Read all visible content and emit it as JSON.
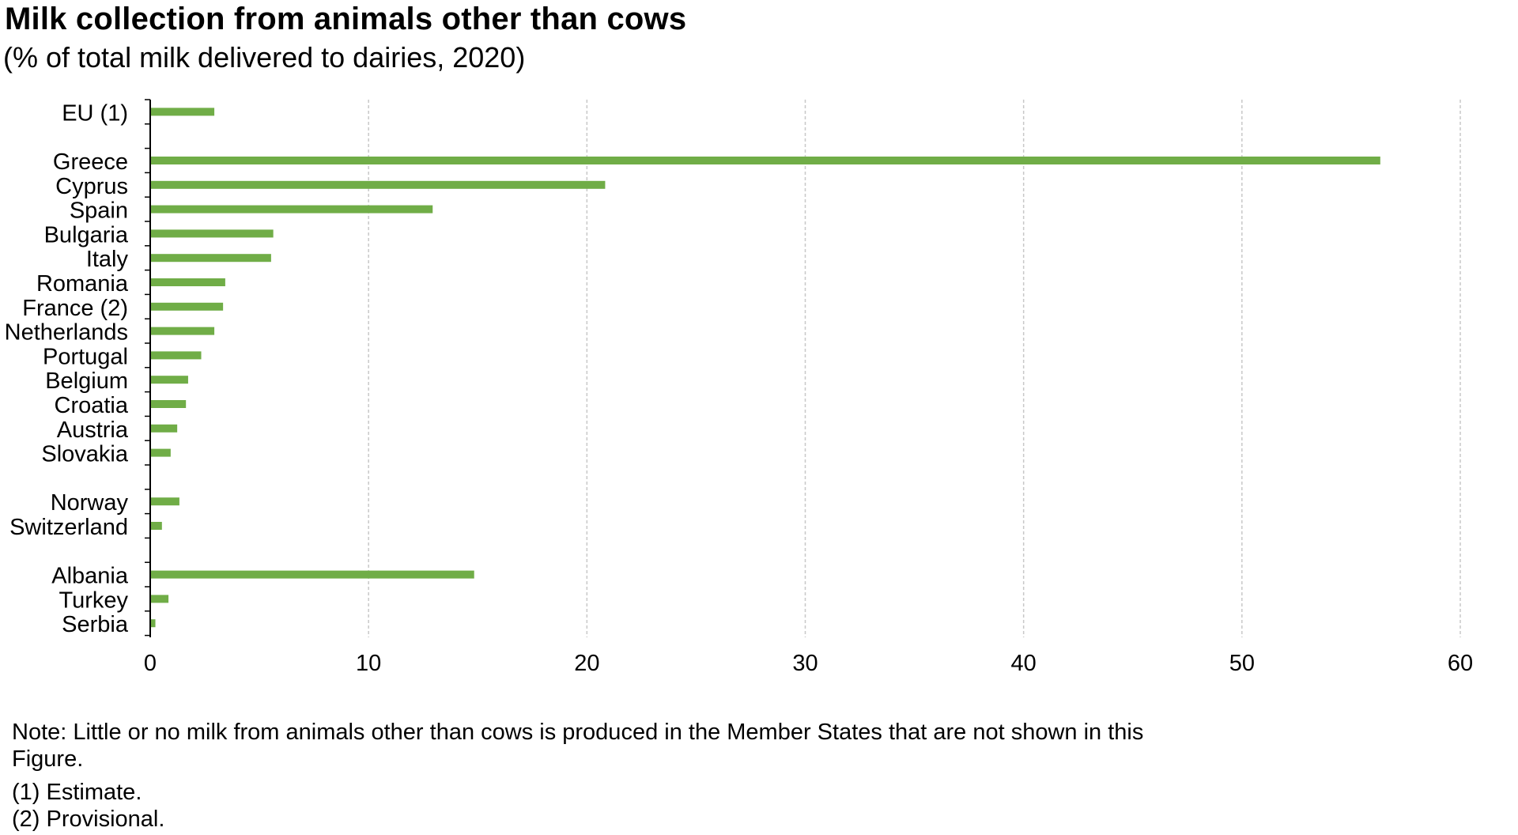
{
  "title": "Milk collection from animals other than cows",
  "subtitle": "(% of total milk delivered to dairies, 2020)",
  "chart_data": {
    "type": "bar",
    "orientation": "horizontal",
    "title": "Milk collection from animals other than cows",
    "subtitle": "(% of total milk delivered to dairies, 2020)",
    "xlabel": "",
    "ylabel": "",
    "xlim": [
      0,
      60
    ],
    "x_ticks": [
      0,
      10,
      20,
      30,
      40,
      50,
      60
    ],
    "grid": "vertical dashed",
    "color": "#70ad47",
    "categories": [
      "EU (1)",
      "",
      "Greece",
      "Cyprus",
      "Spain",
      "Bulgaria",
      "Italy",
      "Romania",
      "France (2)",
      "Netherlands",
      "Portugal",
      "Belgium",
      "Croatia",
      "Austria",
      "Slovakia",
      "",
      "Norway",
      "Switzerland",
      "",
      "Albania",
      "Turkey",
      "Serbia"
    ],
    "values": [
      2.9,
      null,
      56.3,
      20.8,
      12.9,
      5.6,
      5.5,
      3.4,
      3.3,
      2.9,
      2.3,
      1.7,
      1.6,
      1.2,
      0.9,
      null,
      1.3,
      0.5,
      null,
      14.8,
      0.8,
      0.2
    ]
  },
  "notes": {
    "main": "Note: Little or no milk from animals other than cows is produced in the Member States that are not shown in this Figure.",
    "footnote_1": "(1) Estimate.",
    "footnote_2": "(2) Provisional."
  }
}
